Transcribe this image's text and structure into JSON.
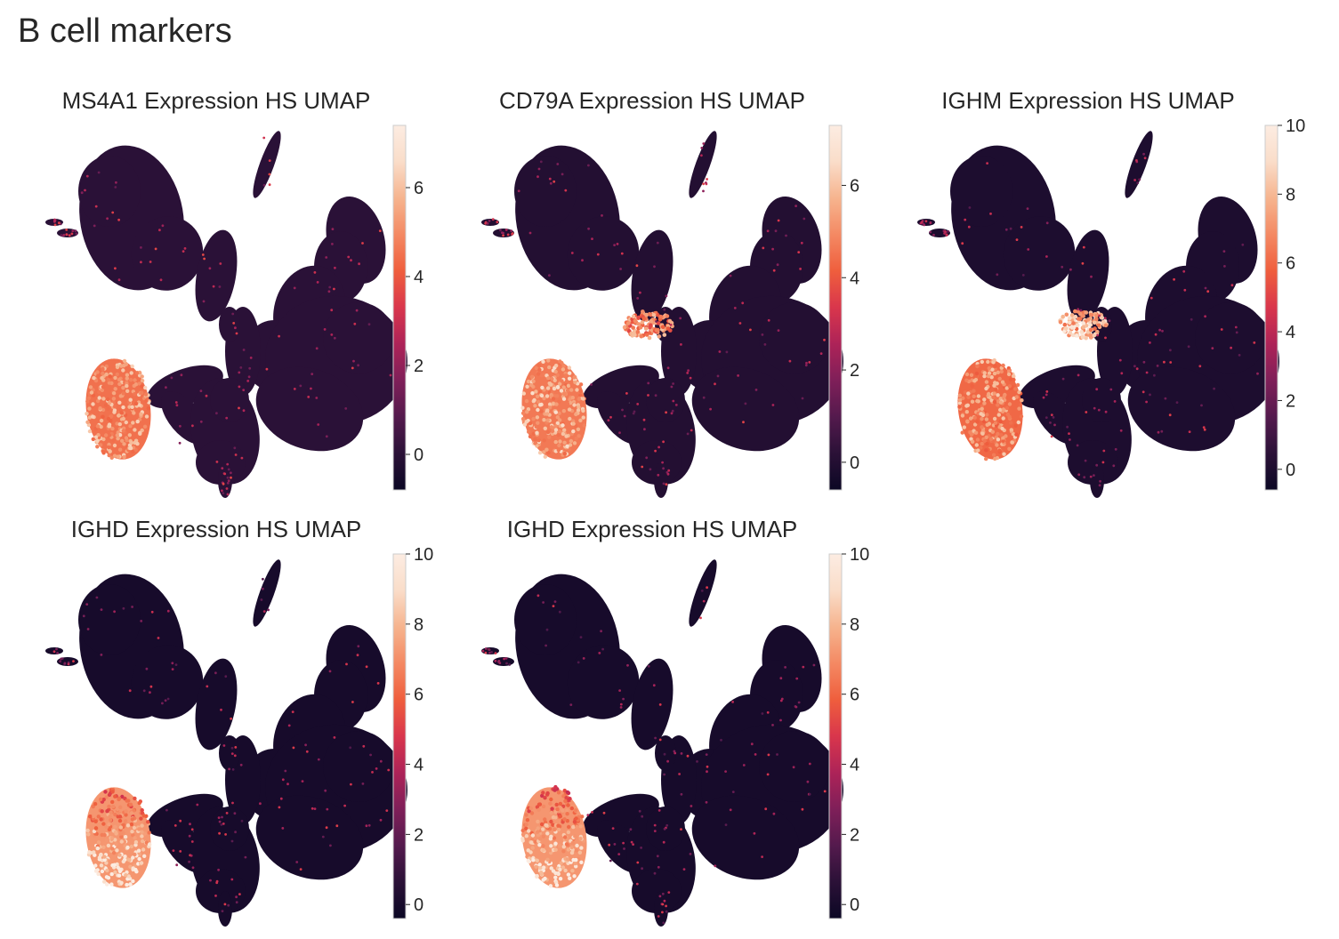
{
  "figure": {
    "title": "B cell markers"
  },
  "colormap": [
    "#0b0724",
    "#2b1137",
    "#541a4d",
    "#7f1f59",
    "#ad2358",
    "#d9364c",
    "#ef5e3d",
    "#f48963",
    "#f6b48e",
    "#faddc9",
    "#fcece2"
  ],
  "chart_data": [
    {
      "type": "scatter",
      "title": "MS4A1 Expression HS UMAP",
      "gene": "MS4A1",
      "colorbar": {
        "range": [
          -0.8,
          7.4
        ],
        "ticks": [
          0,
          2,
          4,
          6
        ]
      },
      "high_clusters": [
        {
          "cluster": "lower-left B cell island",
          "level": 5.6
        }
      ]
    },
    {
      "type": "scatter",
      "title": "CD79A Expression HS UMAP",
      "gene": "CD79A",
      "colorbar": {
        "range": [
          -0.6,
          7.3
        ],
        "ticks": [
          0,
          2,
          4,
          6
        ]
      },
      "high_clusters": [
        {
          "cluster": "lower-left B cell island",
          "level": 5.8
        },
        {
          "cluster": "central plasma cluster",
          "level": 5.2
        }
      ]
    },
    {
      "type": "scatter",
      "title": "IGHM Expression HS UMAP",
      "gene": "IGHM",
      "colorbar": {
        "range": [
          -0.6,
          10.0
        ],
        "ticks": [
          0,
          2,
          4,
          6,
          8,
          10
        ]
      },
      "high_clusters": [
        {
          "cluster": "lower-left B cell island",
          "level": 7.5
        },
        {
          "cluster": "central plasma cluster",
          "level": 8.5
        }
      ]
    },
    {
      "type": "scatter",
      "title": "IGHD Expression HS UMAP",
      "gene": "IGHD",
      "colorbar": {
        "range": [
          -0.4,
          10.0
        ],
        "ticks": [
          0,
          2,
          4,
          6,
          8,
          10
        ]
      },
      "high_clusters": [
        {
          "cluster": "lower-left B cell island",
          "level": 9.0
        }
      ]
    },
    {
      "type": "scatter",
      "title": "IGHD Expression HS UMAP",
      "gene": "IGHD",
      "colorbar": {
        "range": [
          -0.4,
          10.0
        ],
        "ticks": [
          0,
          2,
          4,
          6,
          8,
          10
        ]
      },
      "high_clusters": [
        {
          "cluster": "lower-left B cell island",
          "level": 9.0
        }
      ]
    }
  ]
}
